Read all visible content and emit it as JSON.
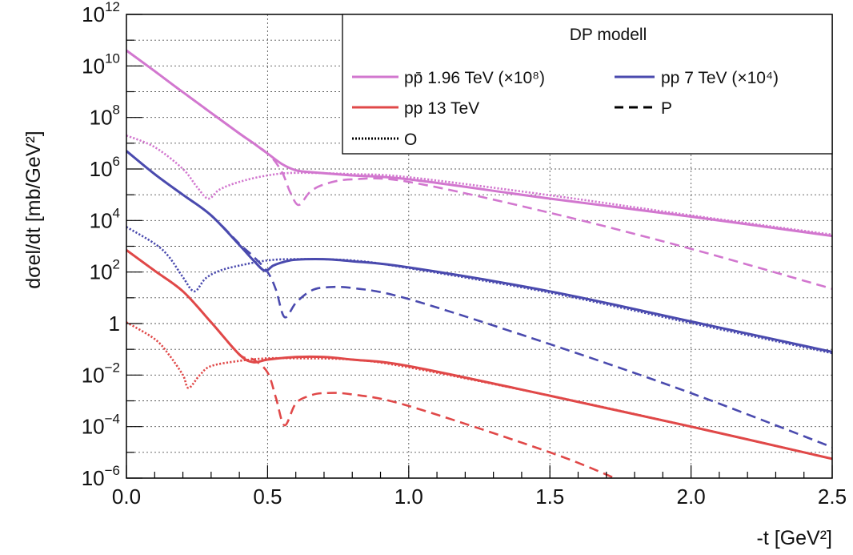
{
  "chart_data": {
    "type": "line",
    "title": "",
    "xlabel": "-t [GeV²]",
    "ylabel": "dσel/dt [mb/GeV²]",
    "xlim": [
      0,
      2.5
    ],
    "ylim_log10": [
      -6,
      12
    ],
    "y_scale": "log",
    "grid": true,
    "legend": {
      "placement": "top-right",
      "header": "DP modell",
      "entries": [
        {
          "text": "pp̄ 1.96 TeV (×10⁸)",
          "color": "#d277cf",
          "style": "solid"
        },
        {
          "text": "pp 7 TeV (×10⁴)",
          "color": "#4a4aae",
          "style": "solid"
        },
        {
          "text": "pp 13 TeV",
          "color": "#e04848",
          "style": "solid"
        },
        {
          "text": "P",
          "color": "#000000",
          "style": "dashed"
        },
        {
          "text": "O",
          "color": "#000000",
          "style": "dotted"
        }
      ]
    },
    "x_ticks": [
      "0.0",
      "0.5",
      "1.0",
      "1.5",
      "2.0",
      "2.5"
    ],
    "y_ticks": [
      {
        "base": "10",
        "exp": "−6"
      },
      {
        "base": "10",
        "exp": "−4"
      },
      {
        "base": "10",
        "exp": "−2"
      },
      {
        "base": "1",
        "exp": ""
      },
      {
        "base": "10",
        "exp": "2"
      },
      {
        "base": "10",
        "exp": "4"
      },
      {
        "base": "10",
        "exp": "6"
      },
      {
        "base": "10",
        "exp": "8"
      },
      {
        "base": "10",
        "exp": "10"
      },
      {
        "base": "10",
        "exp": "12"
      }
    ],
    "series": [
      {
        "group": "ppbar_1.96TeV_x1e8",
        "component": "total",
        "style": "solid",
        "color": "#d277cf",
        "x": [
          0,
          0.1,
          0.2,
          0.3,
          0.4,
          0.45,
          0.5,
          0.55,
          0.6,
          0.65,
          0.8,
          1.0,
          1.5,
          2.0,
          2.5
        ],
        "log10_y": [
          10.6,
          9.8,
          8.98,
          8.18,
          7.38,
          7.0,
          6.6,
          6.2,
          5.95,
          5.88,
          5.75,
          5.6,
          4.85,
          4.15,
          3.4
        ]
      },
      {
        "group": "ppbar_1.96TeV_x1e8",
        "component": "P",
        "style": "dashed",
        "color": "#d277cf",
        "x": [
          0,
          0.1,
          0.2,
          0.3,
          0.4,
          0.5,
          0.55,
          0.58,
          0.61,
          0.65,
          0.7,
          0.8,
          1.0,
          1.5,
          2.0,
          2.5
        ],
        "log10_y": [
          10.6,
          9.8,
          8.98,
          8.18,
          7.38,
          6.6,
          5.9,
          5.1,
          4.6,
          5.1,
          5.4,
          5.6,
          5.5,
          4.3,
          2.9,
          1.35
        ]
      },
      {
        "group": "ppbar_1.96TeV_x1e8",
        "component": "O",
        "style": "dotted",
        "color": "#d277cf",
        "x": [
          0,
          0.1,
          0.2,
          0.25,
          0.29,
          0.33,
          0.4,
          0.5,
          0.6,
          0.8,
          1.0,
          1.5,
          2.0,
          2.5
        ],
        "log10_y": [
          7.3,
          6.85,
          6.0,
          5.3,
          4.85,
          5.2,
          5.5,
          5.75,
          5.85,
          5.8,
          5.68,
          4.98,
          4.2,
          3.45
        ]
      },
      {
        "group": "pp_7TeV_x1e4",
        "component": "total",
        "style": "solid",
        "color": "#4a4aae",
        "x": [
          0,
          0.1,
          0.2,
          0.3,
          0.4,
          0.45,
          0.49,
          0.52,
          0.56,
          0.6,
          0.7,
          0.8,
          1.0,
          1.5,
          2.0,
          2.5
        ],
        "log10_y": [
          6.7,
          5.8,
          5.0,
          4.2,
          3.05,
          2.45,
          2.05,
          2.25,
          2.4,
          2.48,
          2.5,
          2.42,
          2.18,
          1.25,
          0.08,
          -1.1
        ]
      },
      {
        "group": "pp_7TeV_x1e4",
        "component": "P",
        "style": "dashed",
        "color": "#4a4aae",
        "x": [
          0,
          0.1,
          0.2,
          0.3,
          0.4,
          0.45,
          0.5,
          0.53,
          0.56,
          0.6,
          0.65,
          0.7,
          0.8,
          1.0,
          1.5,
          2.0,
          2.5
        ],
        "log10_y": [
          6.7,
          5.8,
          5.0,
          4.2,
          3.1,
          2.6,
          2.0,
          1.3,
          0.25,
          0.8,
          1.25,
          1.4,
          1.38,
          0.95,
          -0.8,
          -2.7,
          -4.8
        ]
      },
      {
        "group": "pp_7TeV_x1e4",
        "component": "O",
        "style": "dotted",
        "color": "#4a4aae",
        "x": [
          0,
          0.1,
          0.15,
          0.2,
          0.24,
          0.28,
          0.33,
          0.4,
          0.5,
          0.6,
          0.8,
          1.0,
          1.5,
          2.0,
          2.5
        ],
        "log10_y": [
          3.75,
          3.1,
          2.6,
          1.8,
          1.25,
          1.75,
          2.05,
          2.25,
          2.45,
          2.5,
          2.45,
          2.15,
          1.2,
          0.02,
          -1.15
        ]
      },
      {
        "group": "pp_13TeV",
        "component": "total",
        "style": "solid",
        "color": "#e04848",
        "x": [
          0,
          0.1,
          0.2,
          0.3,
          0.4,
          0.45,
          0.5,
          0.6,
          0.7,
          0.8,
          1.0,
          1.5,
          2.0,
          2.5
        ],
        "log10_y": [
          2.85,
          2.05,
          1.25,
          0.05,
          -1.2,
          -1.5,
          -1.4,
          -1.3,
          -1.3,
          -1.4,
          -1.65,
          -2.8,
          -4.0,
          -5.25
        ]
      },
      {
        "group": "pp_13TeV",
        "component": "P",
        "style": "dashed",
        "color": "#e04848",
        "x": [
          0,
          0.1,
          0.2,
          0.3,
          0.4,
          0.45,
          0.5,
          0.53,
          0.56,
          0.6,
          0.65,
          0.7,
          0.8,
          1.0,
          1.5,
          1.73
        ],
        "log10_y": [
          2.85,
          2.05,
          1.25,
          0.05,
          -1.2,
          -1.4,
          -1.9,
          -2.9,
          -3.95,
          -3.1,
          -2.8,
          -2.7,
          -2.75,
          -3.2,
          -5.0,
          -6.0
        ]
      },
      {
        "group": "pp_13TeV",
        "component": "O",
        "style": "dotted",
        "color": "#e04848",
        "x": [
          0,
          0.1,
          0.15,
          0.2,
          0.22,
          0.26,
          0.3,
          0.4,
          0.5,
          0.6,
          0.8,
          1.0,
          1.5,
          2.0,
          2.5
        ],
        "log10_y": [
          0.05,
          -0.6,
          -1.2,
          -2.0,
          -2.5,
          -2.0,
          -1.65,
          -1.45,
          -1.35,
          -1.35,
          -1.4,
          -1.7,
          -2.8,
          -4.0,
          -5.25
        ]
      }
    ]
  }
}
